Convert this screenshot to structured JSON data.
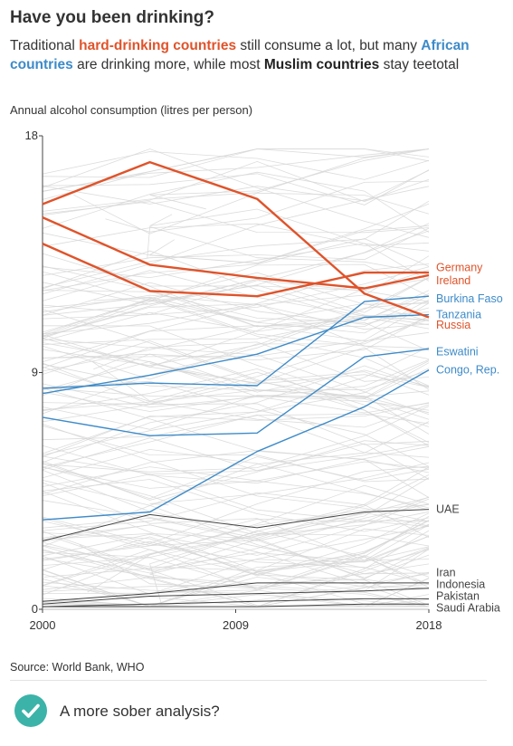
{
  "header": {
    "title": "Have you been drinking?",
    "subtitle_parts": {
      "p1": "Traditional ",
      "h1": "hard-drinking countries",
      "p2": " still consume a lot, but many ",
      "h2": "African countries",
      "p3": " are drinking more, while most ",
      "h3": "Muslim countries",
      "p4": " stay teetotal"
    }
  },
  "colors": {
    "hard_drinking": "#e0532a",
    "african": "#3d8bc9",
    "muslim": "#444444",
    "background_lines": "#d6d6d6",
    "check_circle": "#3bb3a8"
  },
  "chart_data": {
    "type": "line",
    "ylabel": "Annual alcohol consumption (litres per person)",
    "x_ticks": [
      2000,
      2009,
      2018
    ],
    "y_ticks": [
      0,
      9,
      18
    ],
    "xlim": [
      2000,
      2018
    ],
    "ylim": [
      0,
      18
    ],
    "grid": false,
    "x": [
      2000,
      2005,
      2010,
      2015,
      2018
    ],
    "series": [
      {
        "name": "Germany",
        "group": "hard_drinking",
        "values": [
          13.9,
          12.1,
          11.9,
          12.8,
          12.8
        ]
      },
      {
        "name": "Ireland",
        "group": "hard_drinking",
        "values": [
          14.9,
          13.1,
          12.6,
          12.2,
          12.7
        ]
      },
      {
        "name": "Russia",
        "group": "hard_drinking",
        "values": [
          15.4,
          17.0,
          15.6,
          12.0,
          11.1
        ]
      },
      {
        "name": "Burkina Faso",
        "group": "african",
        "values": [
          8.4,
          8.6,
          8.5,
          11.7,
          11.9
        ]
      },
      {
        "name": "Tanzania",
        "group": "african",
        "values": [
          8.2,
          8.9,
          9.7,
          11.1,
          11.2
        ]
      },
      {
        "name": "Eswatini",
        "group": "african",
        "values": [
          7.3,
          6.6,
          6.7,
          9.6,
          9.9
        ]
      },
      {
        "name": "Congo, Rep.",
        "group": "african",
        "values": [
          3.4,
          3.7,
          6.0,
          7.7,
          9.1
        ]
      },
      {
        "name": "UAE",
        "group": "muslim",
        "values": [
          2.6,
          3.6,
          3.1,
          3.7,
          3.8
        ]
      },
      {
        "name": "Iran",
        "group": "muslim",
        "values": [
          0.3,
          0.6,
          1.0,
          1.0,
          1.0
        ]
      },
      {
        "name": "Indonesia",
        "group": "muslim",
        "values": [
          0.2,
          0.5,
          0.6,
          0.7,
          0.8
        ]
      },
      {
        "name": "Pakistan",
        "group": "muslim",
        "values": [
          0.1,
          0.2,
          0.3,
          0.4,
          0.4
        ]
      },
      {
        "name": "Saudi Arabia",
        "group": "muslim",
        "values": [
          0.1,
          0.1,
          0.1,
          0.2,
          0.2
        ]
      }
    ],
    "end_labels": [
      {
        "series": "Germany",
        "text": "Germany",
        "label_y": 13.0
      },
      {
        "series": "Ireland",
        "text": "Ireland",
        "label_y": 12.5
      },
      {
        "series": "Burkina Faso",
        "text": "Burkina Faso",
        "label_y": 11.8
      },
      {
        "series": "Tanzania",
        "text": "Tanzania",
        "label_y": 11.2
      },
      {
        "series": "Russia",
        "text": "Russia",
        "label_y": 10.8
      },
      {
        "series": "Eswatini",
        "text": "Eswatini",
        "label_y": 9.8
      },
      {
        "series": "Congo, Rep.",
        "text": "Congo, Rep.",
        "label_y": 9.1
      },
      {
        "series": "UAE",
        "text": "UAE",
        "label_y": 3.8
      },
      {
        "series": "Iran",
        "text": "Iran",
        "label_y": 1.4
      },
      {
        "series": "Indonesia",
        "text": "Indonesia",
        "label_y": 0.95
      },
      {
        "series": "Pakistan",
        "text": "Pakistan",
        "label_y": 0.5
      },
      {
        "series": "Saudi Arabia",
        "text": "Saudi Arabia",
        "label_y": 0.05
      }
    ],
    "background_series_count": 160
  },
  "source": "Source: World Bank, WHO",
  "footer": {
    "check_icon": "check-circle-icon",
    "text": "A more sober analysis?"
  }
}
